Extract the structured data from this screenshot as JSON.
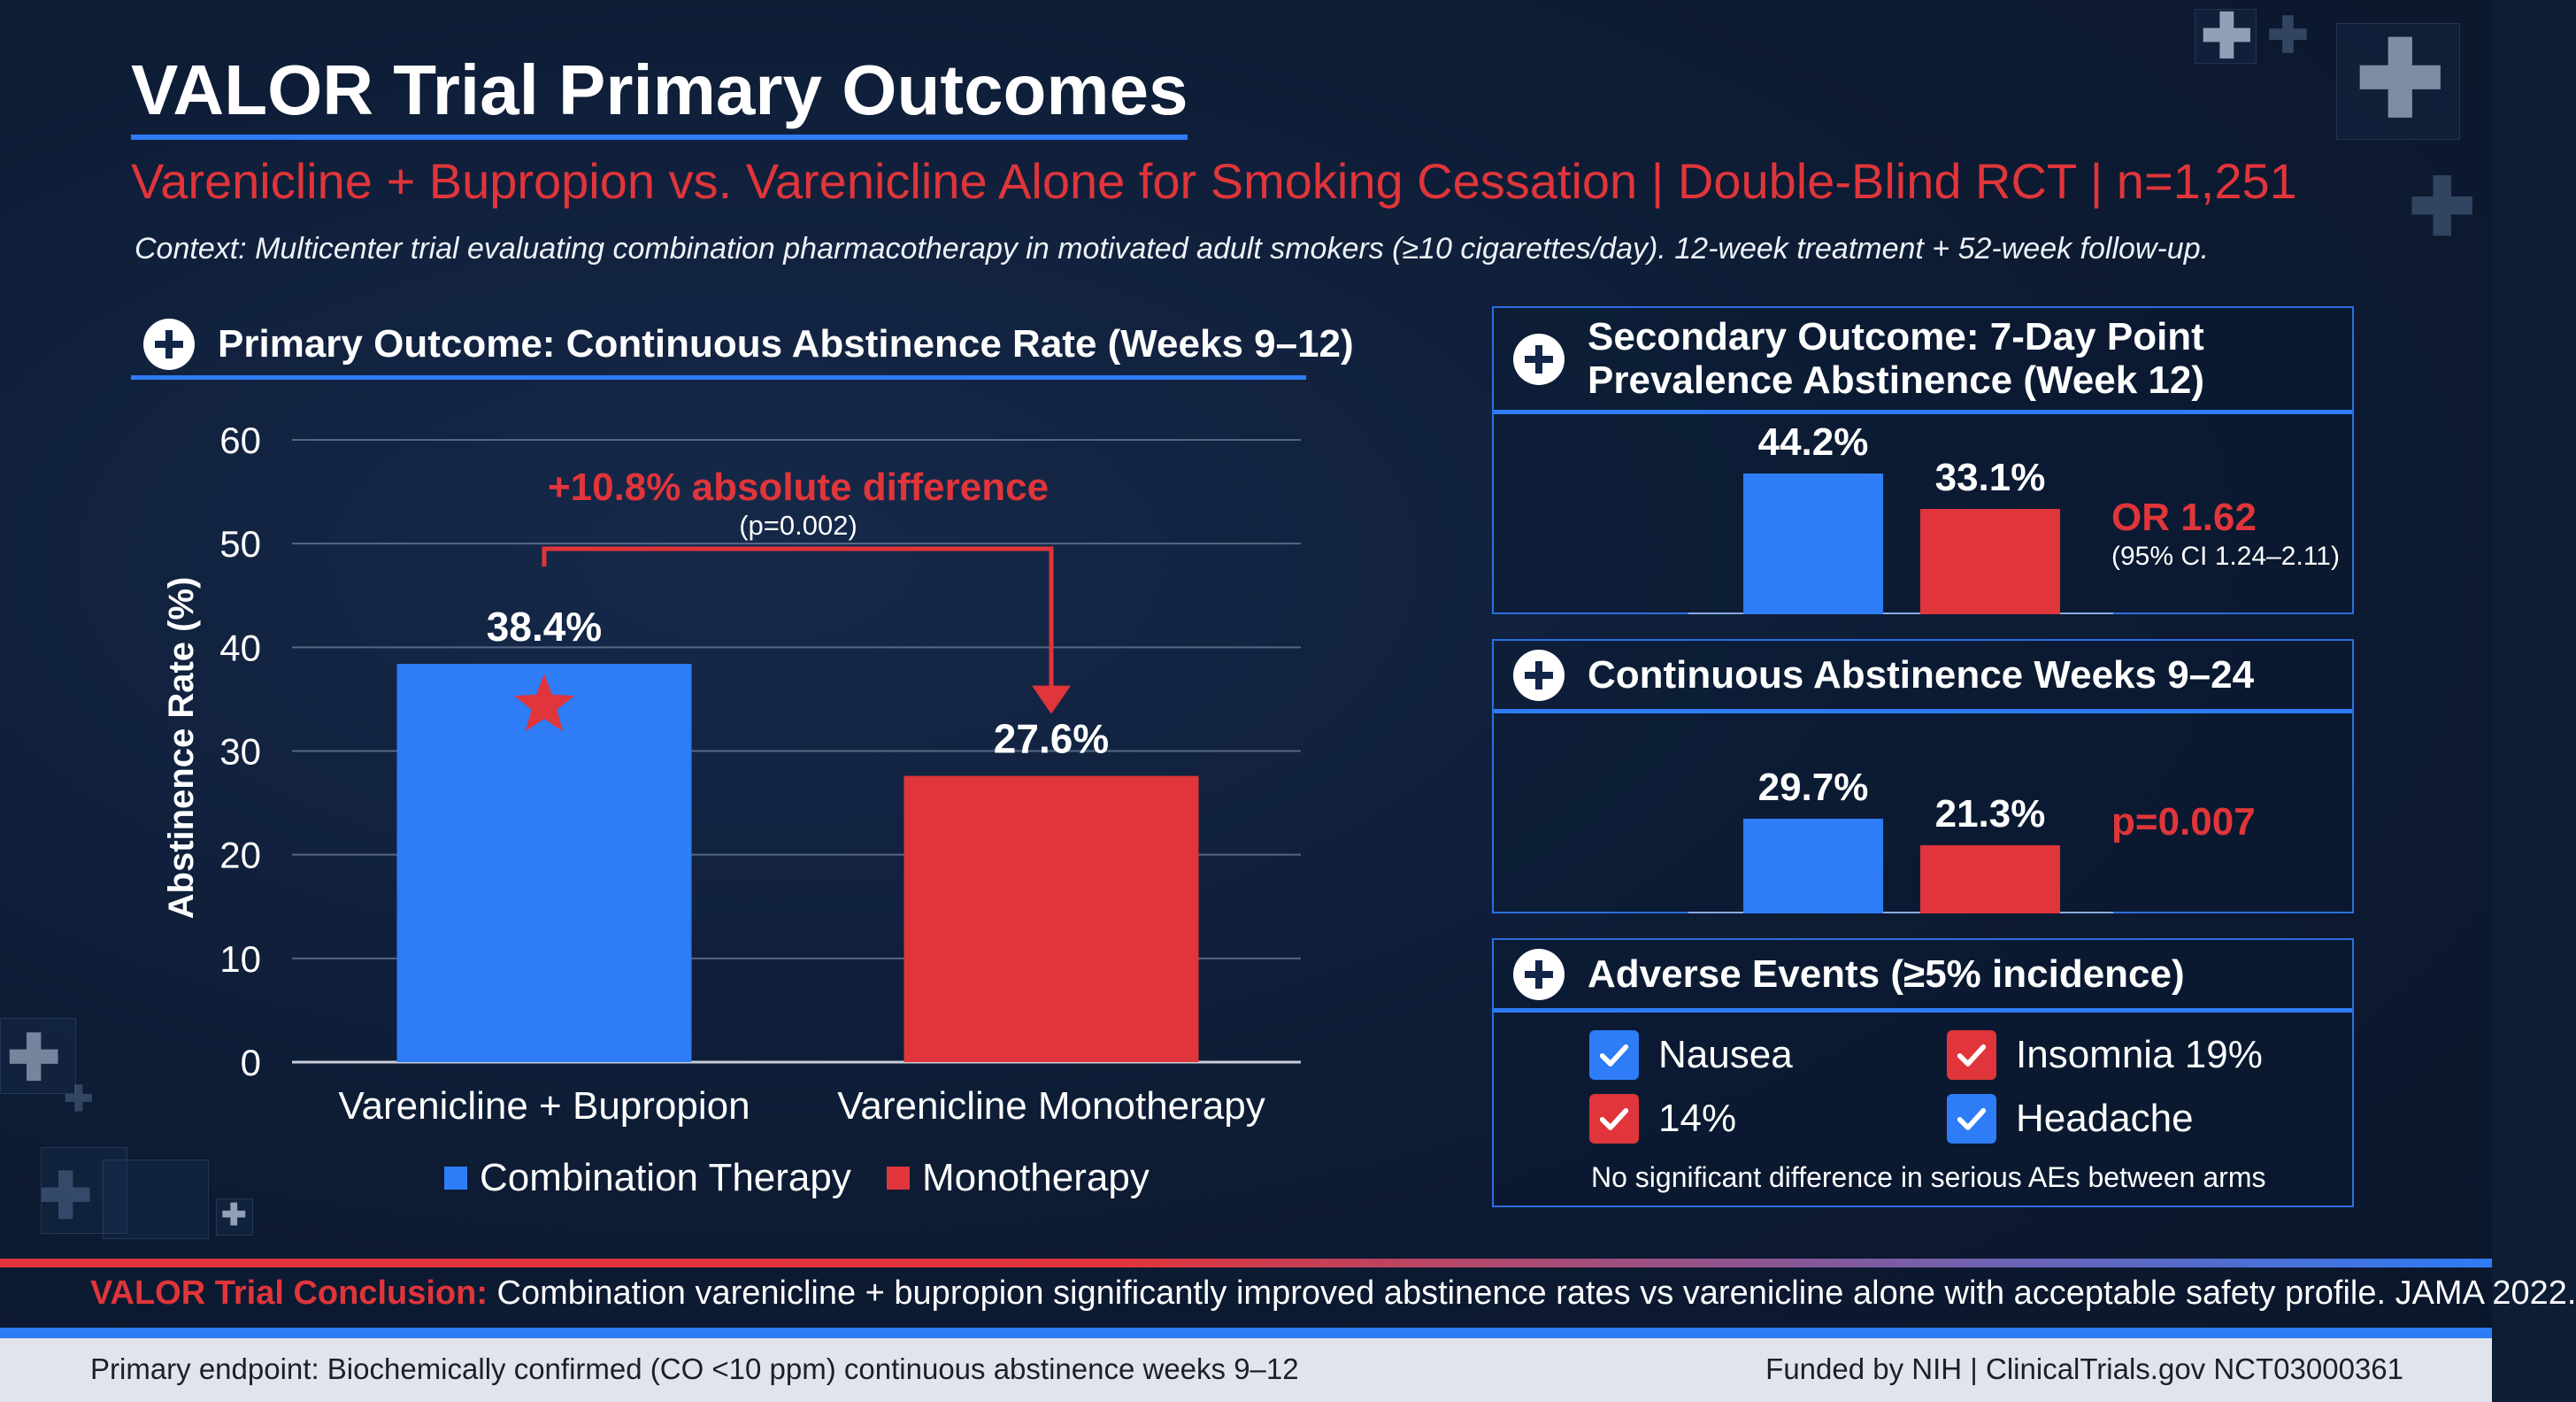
{
  "title": "VALOR Trial Primary Outcomes",
  "subtitle": "Varenicline + Bupropion vs. Varenicline Alone for Smoking Cessation | Double-Blind RCT | n=1,251",
  "context": "Context: Multicenter trial evaluating combination pharmacotherapy in motivated adult smokers (≥10 cigarettes/day). 12-week treatment + 52-week follow-up.",
  "colors": {
    "blue": "#2e7cf6",
    "red": "#e0353a",
    "panel_border": "#2a6fe0"
  },
  "icons": [
    "plus-circle-icon",
    "star-icon",
    "checkbox-checked-icon",
    "medical-cross-icon"
  ],
  "primary": {
    "heading": "Primary Outcome: Continuous Abstinence Rate (Weeks 9–12)",
    "annotation": "+10.8% absolute difference",
    "annotation_p": "(p=0.002)"
  },
  "chart_data": [
    {
      "type": "bar",
      "title": "Primary Outcome: Continuous Abstinence Rate (Weeks 9–12)",
      "categories": [
        "Varenicline + Bupropion",
        "Varenicline Monotherapy"
      ],
      "values": [
        38.4,
        27.6
      ],
      "value_labels": [
        "38.4%",
        "27.6%"
      ],
      "colors": [
        "#2e7cf6",
        "#e0353a"
      ],
      "ylabel": "Abstinence Rate (%)",
      "ylim": [
        0,
        60
      ],
      "yticks": [
        0,
        10,
        20,
        30,
        40,
        50,
        60
      ],
      "grid": true,
      "legend": [
        {
          "name": "Combination Therapy",
          "color": "#2e7cf6"
        },
        {
          "name": "Monotherapy",
          "color": "#e0353a"
        }
      ],
      "legend_position": "bottom"
    },
    {
      "type": "bar",
      "title": "Secondary Outcome: 7-Day Point Prevalence Abstinence (Week 12)",
      "values": [
        44.2,
        33.1
      ],
      "value_labels": [
        "44.2%",
        "33.1%"
      ],
      "colors": [
        "#2e7cf6",
        "#e0353a"
      ],
      "stat": "OR 1.62",
      "stat_detail": "(95% CI 1.24–2.11)"
    },
    {
      "type": "bar",
      "title": "Continuous Abstinence Weeks 9–24",
      "values": [
        29.7,
        21.3
      ],
      "value_labels": [
        "29.7%",
        "21.3%"
      ],
      "colors": [
        "#2e7cf6",
        "#e0353a"
      ],
      "stat": "p=0.007"
    }
  ],
  "secondary": {
    "heading_line1": "Secondary Outcome: 7-Day Point",
    "heading_line2": "Prevalence Abstinence (Week 12)"
  },
  "continuous": {
    "heading": "Continuous Abstinence Weeks 9–24"
  },
  "adverse": {
    "heading": "Adverse Events (≥5% incidence)",
    "items": [
      {
        "label": "Nausea",
        "color": "#2e7cf6"
      },
      {
        "label": "Insomnia 19%",
        "color": "#e0353a"
      },
      {
        "label": "14%",
        "color": "#e0353a"
      },
      {
        "label": "Headache",
        "color": "#2e7cf6"
      }
    ],
    "note": "No significant difference in serious AEs between arms"
  },
  "conclusion": {
    "lead": "VALOR Trial Conclusion:",
    "text": " Combination varenicline + bupropion significantly improved abstinence rates vs varenicline alone with acceptable safety profile. JAMA 2022."
  },
  "footer": {
    "left": "Primary endpoint: Biochemically confirmed (CO <10 ppm) continuous abstinence weeks 9–12",
    "right": "Funded by NIH | ClinicalTrials.gov NCT03000361"
  }
}
